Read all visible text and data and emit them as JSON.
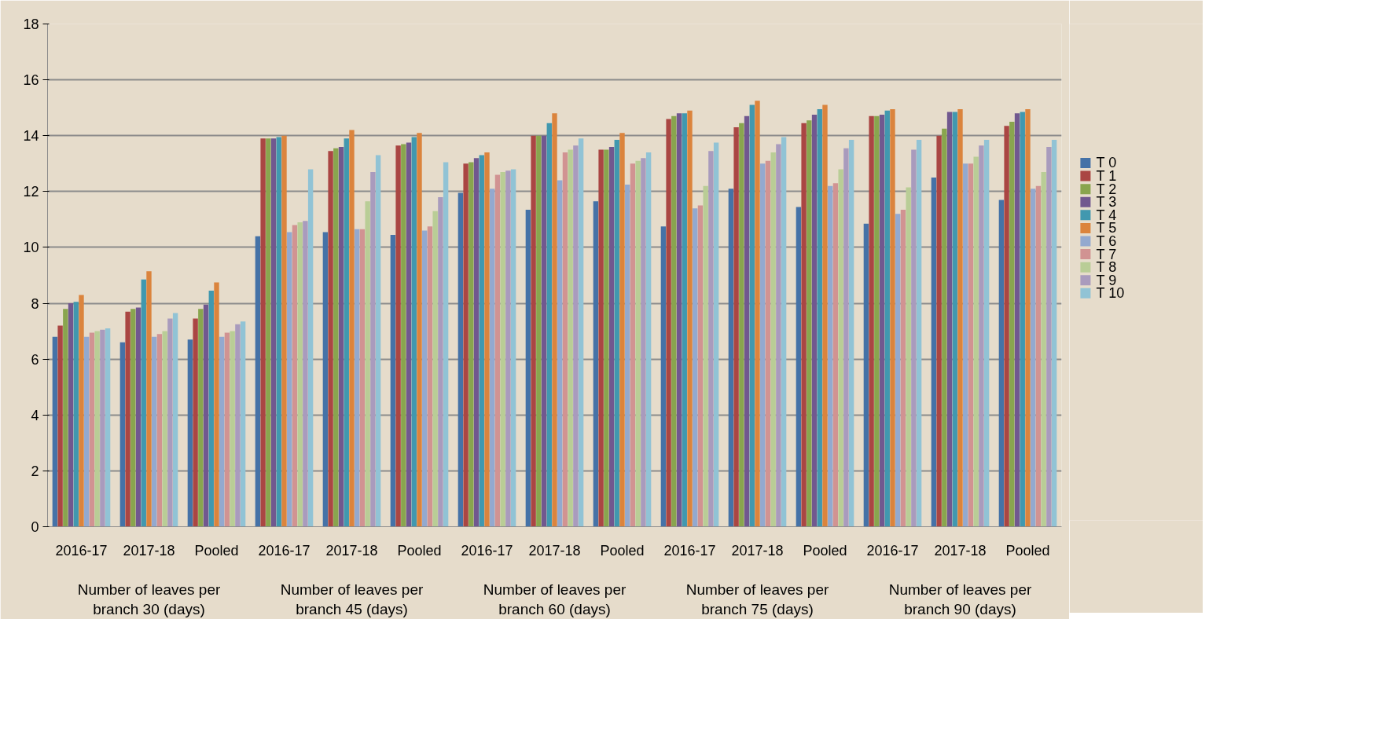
{
  "chart_data": {
    "type": "bar",
    "categories": [
      "2016-17",
      "2017-18",
      "Pooled",
      "2016-17",
      "2017-18",
      "Pooled",
      "2016-17",
      "2017-18",
      "Pooled",
      "2016-17",
      "2017-18",
      "Pooled",
      "2016-17",
      "2017-18",
      "Pooled"
    ],
    "annotations": [
      "Number of leaves per branch 30 (days)",
      "Number of leaves per branch 45 (days)",
      "Number of leaves per branch 60 (days)",
      "Number of leaves per branch 75 (days)",
      "Number of leaves per branch 90 (days)"
    ],
    "ylim": [
      0,
      18
    ],
    "yticks": [
      0,
      2,
      4,
      6,
      8,
      10,
      12,
      14,
      16,
      18
    ],
    "grid": "y",
    "legend": "right",
    "series": [
      {
        "name": "T 0",
        "color": "#4572a7",
        "values": [
          6.8,
          6.6,
          6.7,
          10.4,
          10.55,
          10.45,
          11.95,
          11.35,
          11.65,
          10.75,
          12.1,
          11.45,
          10.85,
          12.5,
          11.7
        ]
      },
      {
        "name": "T 1",
        "color": "#aa4643",
        "values": [
          7.2,
          7.7,
          7.45,
          13.9,
          13.45,
          13.65,
          13.0,
          14.0,
          13.5,
          14.6,
          14.3,
          14.45,
          14.7,
          14.0,
          14.35
        ]
      },
      {
        "name": "T 2",
        "color": "#89a54e",
        "values": [
          7.8,
          7.8,
          7.8,
          13.9,
          13.55,
          13.7,
          13.05,
          14.0,
          13.5,
          14.7,
          14.45,
          14.55,
          14.7,
          14.25,
          14.5
        ]
      },
      {
        "name": "T 3",
        "color": "#71588f",
        "values": [
          8.0,
          7.85,
          7.95,
          13.9,
          13.6,
          13.75,
          13.2,
          14.0,
          13.6,
          14.8,
          14.7,
          14.75,
          14.75,
          14.85,
          14.8
        ]
      },
      {
        "name": "T 4",
        "color": "#4198af",
        "values": [
          8.05,
          8.85,
          8.45,
          13.95,
          13.9,
          13.95,
          13.3,
          14.45,
          13.85,
          14.8,
          15.1,
          14.95,
          14.9,
          14.85,
          14.85
        ]
      },
      {
        "name": "T 5",
        "color": "#db843d",
        "values": [
          8.3,
          9.15,
          8.75,
          14.0,
          14.2,
          14.1,
          13.4,
          14.8,
          14.1,
          14.9,
          15.25,
          15.1,
          14.95,
          14.95,
          14.95
        ]
      },
      {
        "name": "T 6",
        "color": "#93a9cf",
        "values": [
          6.8,
          6.8,
          6.8,
          10.55,
          10.65,
          10.6,
          12.1,
          12.4,
          12.25,
          11.4,
          13.0,
          12.2,
          11.2,
          13.0,
          12.1
        ]
      },
      {
        "name": "T 7",
        "color": "#d19392",
        "values": [
          6.95,
          6.9,
          6.95,
          10.8,
          10.65,
          10.75,
          12.6,
          13.4,
          13.0,
          11.5,
          13.1,
          12.3,
          11.35,
          13.0,
          12.2
        ]
      },
      {
        "name": "T 8",
        "color": "#b9cd96",
        "values": [
          7.0,
          7.0,
          7.0,
          10.9,
          11.65,
          11.3,
          12.7,
          13.5,
          13.1,
          12.2,
          13.4,
          12.8,
          12.15,
          13.25,
          12.7
        ]
      },
      {
        "name": "T 9",
        "color": "#a99bbd",
        "values": [
          7.05,
          7.45,
          7.25,
          10.95,
          12.7,
          11.8,
          12.75,
          13.65,
          13.2,
          13.45,
          13.7,
          13.55,
          13.5,
          13.65,
          13.6
        ]
      },
      {
        "name": "T 10",
        "color": "#91c3d5",
        "values": [
          7.1,
          7.65,
          7.35,
          12.8,
          13.3,
          13.05,
          12.8,
          13.9,
          13.4,
          13.75,
          13.95,
          13.85,
          13.85,
          13.85,
          13.85
        ]
      }
    ]
  }
}
